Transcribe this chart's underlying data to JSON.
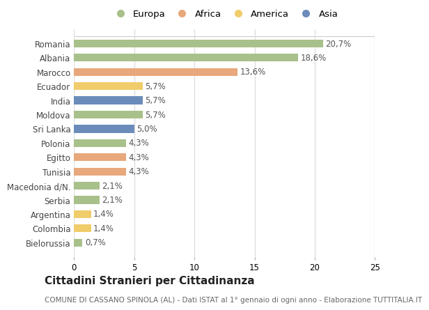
{
  "countries": [
    "Romania",
    "Albania",
    "Marocco",
    "Ecuador",
    "India",
    "Moldova",
    "Sri Lanka",
    "Polonia",
    "Egitto",
    "Tunisia",
    "Macedonia d/N.",
    "Serbia",
    "Argentina",
    "Colombia",
    "Bielorussia"
  ],
  "values": [
    20.7,
    18.6,
    13.6,
    5.7,
    5.7,
    5.7,
    5.0,
    4.3,
    4.3,
    4.3,
    2.1,
    2.1,
    1.4,
    1.4,
    0.7
  ],
  "labels": [
    "20,7%",
    "18,6%",
    "13,6%",
    "5,7%",
    "5,7%",
    "5,7%",
    "5,0%",
    "4,3%",
    "4,3%",
    "4,3%",
    "2,1%",
    "2,1%",
    "1,4%",
    "1,4%",
    "0,7%"
  ],
  "continent": [
    "Europa",
    "Europa",
    "Africa",
    "America",
    "Asia",
    "Europa",
    "Asia",
    "Europa",
    "Africa",
    "Africa",
    "Europa",
    "Europa",
    "America",
    "America",
    "Europa"
  ],
  "colors": {
    "Europa": "#a8c08a",
    "Africa": "#e8a87c",
    "America": "#f0cc6a",
    "Asia": "#6b8cba"
  },
  "legend_order": [
    "Europa",
    "Africa",
    "America",
    "Asia"
  ],
  "title": "Cittadini Stranieri per Cittadinanza",
  "subtitle": "COMUNE DI CASSANO SPINOLA (AL) - Dati ISTAT al 1° gennaio di ogni anno - Elaborazione TUTTITALIA.IT",
  "xlim": [
    0,
    25
  ],
  "xticks": [
    0,
    5,
    10,
    15,
    20,
    25
  ],
  "background_color": "#ffffff",
  "grid_color": "#e0e0e0",
  "bar_height": 0.55,
  "title_fontsize": 11,
  "subtitle_fontsize": 7.5,
  "label_fontsize": 8.5,
  "tick_fontsize": 8.5,
  "legend_fontsize": 9.5
}
